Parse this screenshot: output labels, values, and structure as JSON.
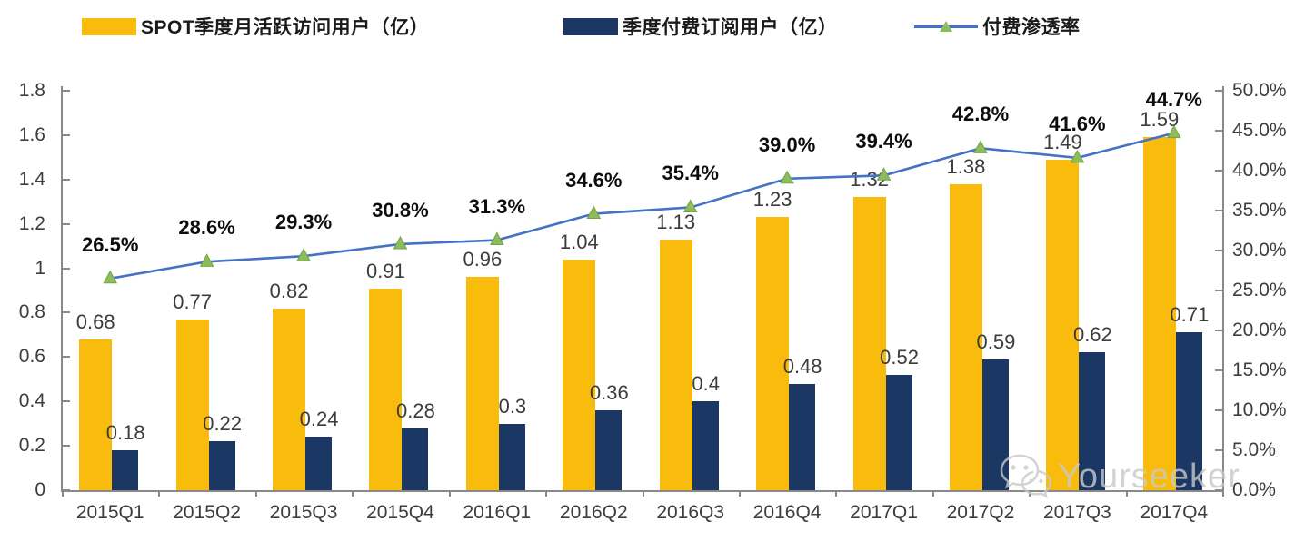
{
  "legend": {
    "items": [
      {
        "label": "SPOT季度月活跃访问用户（亿）",
        "swatch": "bar",
        "color": "#F9BC0D"
      },
      {
        "label": "季度付费订阅用户（亿）",
        "swatch": "bar",
        "color": "#1B3764"
      },
      {
        "label": "付费渗透率",
        "swatch": "line-triangle-marker",
        "color": "#4472C4",
        "marker_color": "#8FBC5A"
      }
    ]
  },
  "chart_data": {
    "type": "combo-bar-line",
    "legend_position": "top",
    "grid": false,
    "categories": [
      "2015Q1",
      "2015Q2",
      "2015Q3",
      "2015Q4",
      "2016Q1",
      "2016Q2",
      "2016Q3",
      "2016Q4",
      "2017Q1",
      "2017Q2",
      "2017Q3",
      "2017Q4"
    ],
    "series": [
      {
        "name": "SPOT季度月活跃访问用户（亿）",
        "type": "bar",
        "axis": "left",
        "color": "#F9BC0D",
        "values": [
          0.68,
          0.77,
          0.82,
          0.91,
          0.96,
          1.04,
          1.13,
          1.23,
          1.32,
          1.38,
          1.49,
          1.59
        ],
        "labels": [
          "0.68",
          "0.77",
          "0.82",
          "0.91",
          "0.96",
          "1.04",
          "1.13",
          "1.23",
          "1.32",
          "1.38",
          "1.49",
          "1.59"
        ]
      },
      {
        "name": "季度付费订阅用户（亿）",
        "type": "bar",
        "axis": "left",
        "color": "#1B3764",
        "values": [
          0.18,
          0.22,
          0.24,
          0.28,
          0.3,
          0.36,
          0.4,
          0.48,
          0.52,
          0.59,
          0.62,
          0.71
        ],
        "labels": [
          "0.18",
          "0.22",
          "0.24",
          "0.28",
          "0.3",
          "0.36",
          "0.4",
          "0.48",
          "0.52",
          "0.59",
          "0.62",
          "0.71"
        ]
      },
      {
        "name": "付费渗透率",
        "type": "line",
        "axis": "right",
        "color": "#4472C4",
        "marker": "triangle",
        "marker_color": "#8FBC5A",
        "values": [
          26.5,
          28.6,
          29.3,
          30.8,
          31.3,
          34.6,
          35.4,
          39.0,
          39.4,
          42.8,
          41.6,
          44.7
        ],
        "labels": [
          "26.5%",
          "28.6%",
          "29.3%",
          "30.8%",
          "31.3%",
          "34.6%",
          "35.4%",
          "39.0%",
          "39.4%",
          "42.8%",
          "41.6%",
          "44.7%"
        ]
      }
    ],
    "left_axis": {
      "min": 0,
      "max": 1.8,
      "tick_values": [
        0,
        0.2,
        0.4,
        0.6,
        0.8,
        1.0,
        1.2,
        1.4,
        1.6,
        1.8
      ],
      "tick_labels": [
        "0",
        "0.2",
        "0.4",
        "0.6",
        "0.8",
        "1",
        "1.2",
        "1.4",
        "1.6",
        "1.8"
      ]
    },
    "right_axis": {
      "min": 0,
      "max": 50,
      "tick_values": [
        0,
        5,
        10,
        15,
        20,
        25,
        30,
        35,
        40,
        45,
        50
      ],
      "tick_labels": [
        "0.0%",
        "5.0%",
        "10.0%",
        "15.0%",
        "20.0%",
        "25.0%",
        "30.0%",
        "35.0%",
        "40.0%",
        "45.0%",
        "50.0%"
      ]
    }
  },
  "watermark": {
    "text": "Yourseeker",
    "icon": "wechat-icon"
  }
}
